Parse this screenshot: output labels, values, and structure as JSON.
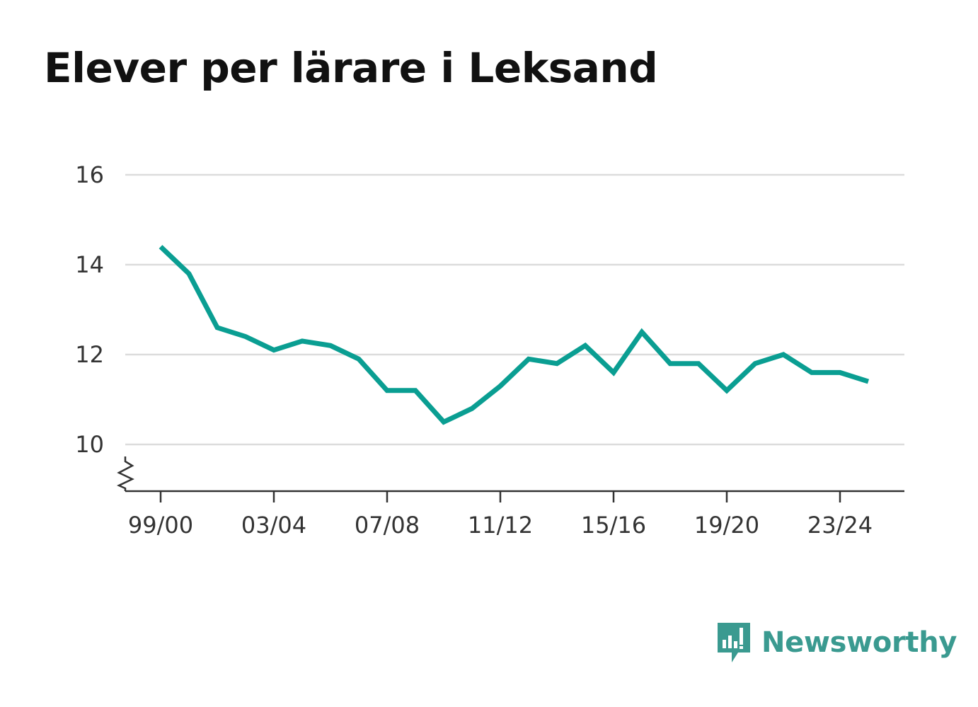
{
  "chart_data": {
    "type": "line",
    "title": "Elever per lärare i Leksand",
    "xlabel": "",
    "ylabel": "",
    "ylim": [
      9,
      16
    ],
    "yticks": [
      "10",
      "12",
      "14",
      "16"
    ],
    "xticks": [
      "99/00",
      "03/04",
      "07/08",
      "11/12",
      "15/16",
      "19/20",
      "23/24"
    ],
    "grid": true,
    "line_color": "#0a9e92",
    "categories": [
      "99/00",
      "00/01",
      "01/02",
      "02/03",
      "03/04",
      "04/05",
      "05/06",
      "06/07",
      "07/08",
      "08/09",
      "09/10",
      "10/11",
      "11/12",
      "12/13",
      "13/14",
      "14/15",
      "15/16",
      "16/17",
      "17/18",
      "18/19",
      "19/20",
      "20/21",
      "21/22",
      "22/23",
      "23/24",
      "24/25"
    ],
    "series": [
      {
        "values": [
          14.4,
          13.8,
          12.6,
          12.4,
          12.1,
          12.3,
          12.2,
          11.9,
          11.2,
          11.2,
          10.5,
          10.8,
          11.3,
          11.9,
          11.8,
          12.2,
          11.6,
          12.5,
          11.8,
          11.8,
          11.2,
          11.8,
          12.0,
          11.6,
          11.6,
          11.4
        ]
      }
    ]
  },
  "brand": {
    "name": "Newsworthy",
    "color": "#3a9a90",
    "icon": "newsworthy-logo-icon"
  }
}
